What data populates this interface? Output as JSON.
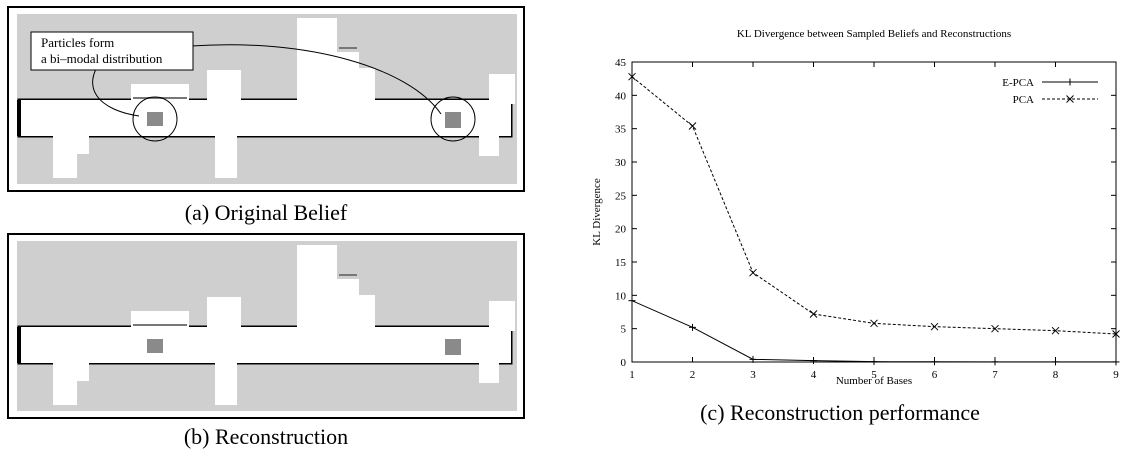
{
  "figure": {
    "panel_a": {
      "annotation_line1": "Particles form",
      "annotation_line2": "a bi–modal distribution",
      "caption": "(a) Original Belief"
    },
    "panel_b": {
      "caption": "(b) Reconstruction"
    },
    "panel_c": {
      "caption": "(c) Reconstruction performance"
    }
  },
  "chart_data": {
    "type": "line",
    "title": "KL Divergence between Sampled Beliefs and Reconstructions",
    "xlabel": "Number of Bases",
    "ylabel": "KL Divergence",
    "x": [
      1,
      2,
      3,
      4,
      5,
      6,
      7,
      8,
      9
    ],
    "xlim": [
      1,
      9
    ],
    "ylim": [
      0,
      45
    ],
    "yticks": [
      0,
      5,
      10,
      15,
      20,
      25,
      30,
      35,
      40,
      45
    ],
    "xticks": [
      1,
      2,
      3,
      4,
      5,
      6,
      7,
      8,
      9
    ],
    "legend_position": "top-right",
    "series": [
      {
        "name": "E-PCA",
        "marker": "+",
        "dash": "solid",
        "values": [
          9.2,
          5.2,
          0.4,
          0.2,
          0.05,
          0.03,
          0.02,
          0.02,
          0.01
        ]
      },
      {
        "name": "PCA",
        "marker": "x",
        "dash": "dashed",
        "values": [
          42.8,
          35.4,
          13.4,
          7.2,
          5.8,
          5.3,
          5.0,
          4.7,
          4.2
        ]
      }
    ]
  }
}
